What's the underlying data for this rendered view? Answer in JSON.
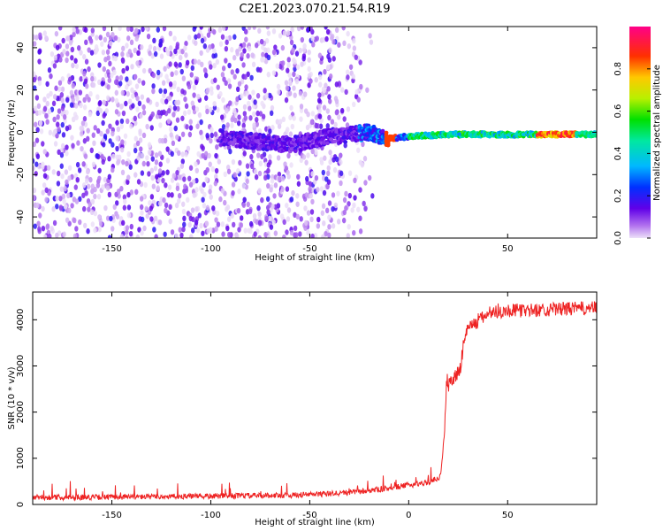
{
  "figure_title": "C2E1.2023.070.21.54.R19",
  "chart_data": [
    {
      "type": "heatmap",
      "xlabel": "Height of straight line (km)",
      "ylabel": "Frequency (Hz)",
      "xlim": [
        -190,
        95
      ],
      "ylim": [
        -50,
        50
      ],
      "x_ticks": [
        -150,
        -100,
        -50,
        0,
        50
      ],
      "y_ticks": [
        -40,
        -20,
        0,
        20,
        40
      ],
      "grid": false,
      "colormap": "rainbow (purple to red)",
      "colorbar": {
        "label": "Normalized spectral amplitude",
        "range": [
          0,
          1
        ],
        "ticks": [
          0.0,
          0.2,
          0.4,
          0.6,
          0.8
        ]
      },
      "description_points": {
        "noise_region_x": [
          -190,
          -15
        ],
        "signal_center_freq_hz": [
          {
            "x": -90,
            "f": -3
          },
          {
            "x": -60,
            "f": -6
          },
          {
            "x": -40,
            "f": -2
          },
          {
            "x": -20,
            "f": 0
          },
          {
            "x": -10,
            "f": -3
          },
          {
            "x": 0,
            "f": -2
          },
          {
            "x": 20,
            "f": -1
          },
          {
            "x": 60,
            "f": -1
          },
          {
            "x": 90,
            "f": -1
          }
        ],
        "peak_amplitude_x": [
          65,
          85
        ]
      }
    },
    {
      "type": "line",
      "xlabel": "Height of straight line (km)",
      "ylabel": "SNR (10 * v/v)",
      "xlim": [
        -190,
        95
      ],
      "ylim": [
        0,
        4600
      ],
      "x_ticks": [
        -150,
        -100,
        -50,
        0,
        50
      ],
      "y_ticks": [
        0,
        1000,
        2000,
        3000,
        4000
      ],
      "grid": false,
      "series": [
        {
          "color": "#ee2222",
          "x": [
            -190,
            -150,
            -100,
            -60,
            -40,
            -30,
            -20,
            -10,
            0,
            10,
            16,
            18,
            19,
            20,
            22,
            26,
            28,
            30,
            35,
            40,
            50,
            60,
            70,
            80,
            90,
            95
          ],
          "y": [
            150,
            160,
            180,
            200,
            230,
            260,
            300,
            350,
            420,
            480,
            600,
            1500,
            2500,
            2600,
            2700,
            2900,
            3600,
            3850,
            3950,
            4150,
            4200,
            4200,
            4220,
            4240,
            4250,
            4250
          ]
        }
      ]
    }
  ]
}
